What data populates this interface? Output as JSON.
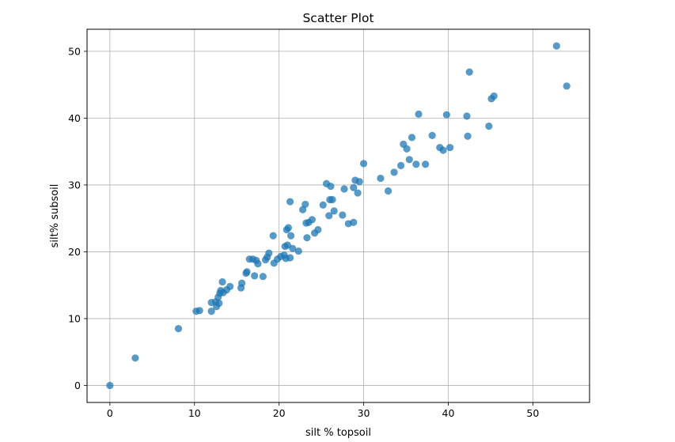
{
  "chart_data": {
    "type": "scatter",
    "title": "Scatter Plot",
    "xlabel": "silt % topsoil",
    "ylabel": "silt% subsoil",
    "xlim": [
      -2.7,
      56.7
    ],
    "ylim": [
      -2.55,
      53.3
    ],
    "xticks": [
      0,
      10,
      20,
      30,
      40,
      50
    ],
    "yticks": [
      0,
      10,
      20,
      30,
      40,
      50
    ],
    "grid": true,
    "legend": "none",
    "point_color": "#1f77b4",
    "points": [
      [
        0,
        0
      ],
      [
        3,
        4.1
      ],
      [
        8.1,
        8.5
      ],
      [
        10.2,
        11.1
      ],
      [
        10.6,
        11.2
      ],
      [
        12,
        11.1
      ],
      [
        12,
        12.4
      ],
      [
        12.5,
        12.5
      ],
      [
        12.6,
        11.8
      ],
      [
        12.8,
        13.2
      ],
      [
        12.9,
        12.3
      ],
      [
        13,
        13.8
      ],
      [
        13.1,
        14.2
      ],
      [
        13.3,
        15.5
      ],
      [
        13.4,
        13.9
      ],
      [
        13.8,
        14.3
      ],
      [
        14.2,
        14.8
      ],
      [
        15.5,
        14.6
      ],
      [
        15.6,
        15.3
      ],
      [
        16.1,
        16.8
      ],
      [
        16.2,
        17
      ],
      [
        16.5,
        18.9
      ],
      [
        16.9,
        18.9
      ],
      [
        17.1,
        16.4
      ],
      [
        17.3,
        18.7
      ],
      [
        17.5,
        18.2
      ],
      [
        18.1,
        16.3
      ],
      [
        18.4,
        18.8
      ],
      [
        18.6,
        19.2
      ],
      [
        18.8,
        19.8
      ],
      [
        19.3,
        22.4
      ],
      [
        19.4,
        18.3
      ],
      [
        19.8,
        18.9
      ],
      [
        20.2,
        19.3
      ],
      [
        20.6,
        19.5
      ],
      [
        20.7,
        20.8
      ],
      [
        20.8,
        19
      ],
      [
        20.9,
        23.3
      ],
      [
        21,
        21
      ],
      [
        21.1,
        23.6
      ],
      [
        21.3,
        19.1
      ],
      [
        21.3,
        27.5
      ],
      [
        21.4,
        22.4
      ],
      [
        21.6,
        20.5
      ],
      [
        22.3,
        20.1
      ],
      [
        22.8,
        26.3
      ],
      [
        23.1,
        27.1
      ],
      [
        23.2,
        24.3
      ],
      [
        23.3,
        22.1
      ],
      [
        23.5,
        24.4
      ],
      [
        23.9,
        24.8
      ],
      [
        24.2,
        22.8
      ],
      [
        24.6,
        23.3
      ],
      [
        25.2,
        27
      ],
      [
        25.6,
        30.2
      ],
      [
        25.9,
        25.4
      ],
      [
        26,
        27.8
      ],
      [
        26.1,
        29.8
      ],
      [
        26.3,
        27.8
      ],
      [
        26.5,
        26.1
      ],
      [
        27.5,
        25.5
      ],
      [
        27.7,
        29.4
      ],
      [
        28.2,
        24.2
      ],
      [
        28.8,
        29.6
      ],
      [
        28.8,
        24.4
      ],
      [
        29,
        30.7
      ],
      [
        29.3,
        28.8
      ],
      [
        29.5,
        30.5
      ],
      [
        30,
        33.2
      ],
      [
        32,
        31
      ],
      [
        32.9,
        29.1
      ],
      [
        33.6,
        31.9
      ],
      [
        34.4,
        32.9
      ],
      [
        34.7,
        36.1
      ],
      [
        35.1,
        35.4
      ],
      [
        35.4,
        33.8
      ],
      [
        35.7,
        37.1
      ],
      [
        36.2,
        33.1
      ],
      [
        36.5,
        40.6
      ],
      [
        37.3,
        33.1
      ],
      [
        38.1,
        37.4
      ],
      [
        39,
        35.6
      ],
      [
        39.4,
        35.2
      ],
      [
        39.8,
        40.5
      ],
      [
        40.2,
        35.6
      ],
      [
        42.2,
        40.3
      ],
      [
        42.3,
        37.3
      ],
      [
        42.5,
        46.9
      ],
      [
        44.8,
        38.8
      ],
      [
        45.1,
        42.9
      ],
      [
        45.4,
        43.3
      ],
      [
        52.8,
        50.8
      ],
      [
        54,
        44.8
      ]
    ]
  }
}
